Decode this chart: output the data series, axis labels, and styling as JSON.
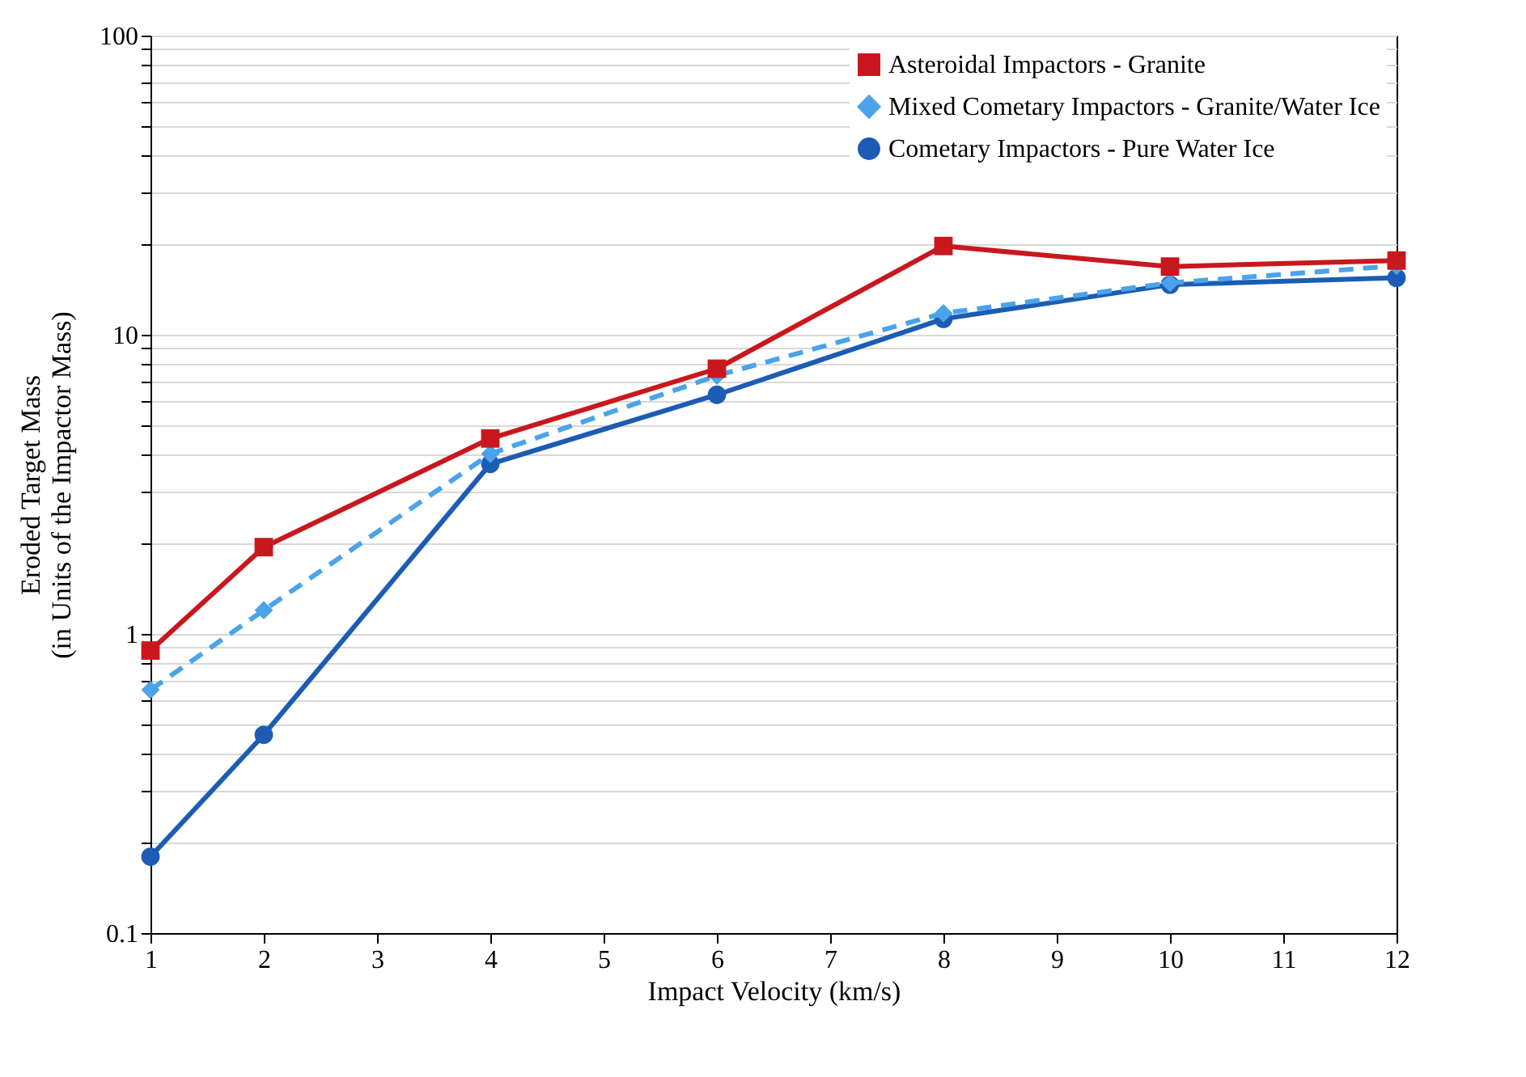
{
  "chart_data": {
    "type": "line",
    "xlabel": "Impact Velocity (km/s)",
    "ylabel": "Eroded Target Mass\n(in Units of the Impactor Mass)",
    "x": [
      1,
      2,
      4,
      6,
      8,
      10,
      12
    ],
    "series": [
      {
        "name": "Asteroidal Impactors - Granite",
        "color": "#c8181e",
        "marker": "square",
        "line_style": "solid",
        "values": [
          0.88,
          1.95,
          4.5,
          7.7,
          19.8,
          16.9,
          17.7
        ]
      },
      {
        "name": "Mixed Cometary Impactors - Granite/Water Ice",
        "color": "#4ba3ea",
        "marker": "diamond",
        "line_style": "dashed",
        "values": [
          0.65,
          1.2,
          4.0,
          7.3,
          11.8,
          14.9,
          17.0
        ]
      },
      {
        "name": "Cometary Impactors - Pure Water Ice",
        "color": "#1c5cb5",
        "marker": "circle",
        "line_style": "solid",
        "values": [
          0.18,
          0.46,
          3.7,
          6.3,
          11.3,
          14.7,
          15.5
        ]
      }
    ],
    "log": "y",
    "xlim": [
      1,
      12
    ],
    "xticks": [
      1,
      2,
      3,
      4,
      5,
      6,
      7,
      8,
      9,
      10,
      11,
      12
    ],
    "ylim": [
      0.1,
      100
    ],
    "yticks": [
      0.1,
      {
        "value": 0.2,
        "label": null
      },
      {
        "value": 0.3,
        "label": null
      },
      {
        "value": 0.4,
        "label": null
      },
      {
        "value": 0.5,
        "label": null
      },
      {
        "value": 0.6,
        "label": null
      },
      {
        "value": 0.7,
        "label": null
      },
      {
        "value": 0.8,
        "label": null
      },
      {
        "value": 0.9,
        "label": null
      },
      1,
      {
        "value": 2,
        "label": null
      },
      {
        "value": 3,
        "label": null
      },
      {
        "value": 4,
        "label": null
      },
      {
        "value": 5,
        "label": null
      },
      {
        "value": 6,
        "label": null
      },
      {
        "value": 7,
        "label": null
      },
      {
        "value": 8,
        "label": null
      },
      {
        "value": 9,
        "label": null
      },
      10,
      {
        "value": 20,
        "label": null
      },
      {
        "value": 30,
        "label": null
      },
      {
        "value": 40,
        "label": null
      },
      {
        "value": 50,
        "label": null
      },
      {
        "value": 60,
        "label": null
      },
      {
        "value": 70,
        "label": null
      },
      {
        "value": 80,
        "label": null
      },
      {
        "value": 90,
        "label": null
      },
      100
    ],
    "grid": "y",
    "legend": "top right"
  }
}
